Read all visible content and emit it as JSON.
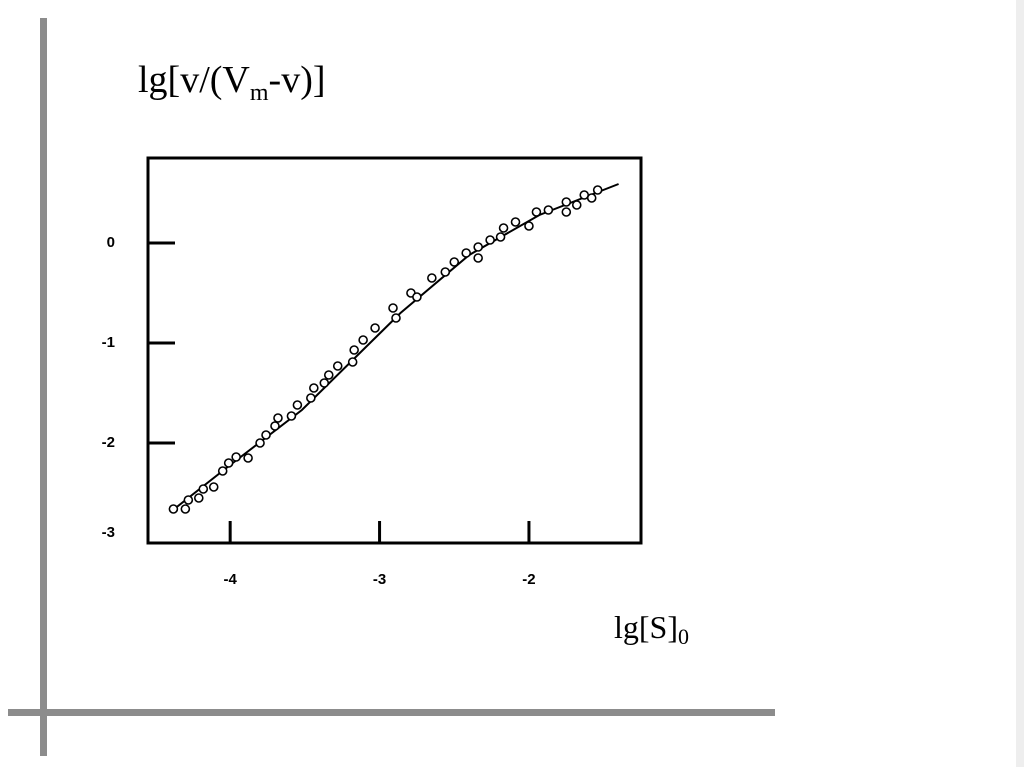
{
  "chart_data": {
    "type": "scatter",
    "ylabel": [
      "lg[v/(V",
      "m",
      "-v)]"
    ],
    "xlabel": [
      "lg[S]",
      "0"
    ],
    "x": [
      -4.38,
      -4.3,
      -4.28,
      -4.21,
      -4.18,
      -4.11,
      -4.05,
      -4.01,
      -3.96,
      -3.88,
      -3.8,
      -3.76,
      -3.7,
      -3.68,
      -3.59,
      -3.55,
      -3.46,
      -3.44,
      -3.37,
      -3.34,
      -3.28,
      -3.18,
      -3.17,
      -3.11,
      -3.03,
      -2.91,
      -2.89,
      -2.79,
      -2.75,
      -2.65,
      -2.56,
      -2.5,
      -2.42,
      -2.34,
      -2.34,
      -2.26,
      -2.19,
      -2.17,
      -2.09,
      -2.0,
      -1.95,
      -1.87,
      -1.75,
      -1.75,
      -1.68,
      -1.63,
      -1.58,
      -1.54
    ],
    "values": [
      -2.66,
      -2.66,
      -2.57,
      -2.55,
      -2.46,
      -2.44,
      -2.28,
      -2.2,
      -2.14,
      -2.15,
      -2.0,
      -1.92,
      -1.83,
      -1.75,
      -1.73,
      -1.62,
      -1.55,
      -1.45,
      -1.4,
      -1.32,
      -1.23,
      -1.19,
      -1.07,
      -0.97,
      -0.85,
      -0.65,
      -0.75,
      -0.5,
      -0.54,
      -0.35,
      -0.29,
      -0.19,
      -0.1,
      -0.04,
      -0.15,
      0.03,
      0.06,
      0.15,
      0.21,
      0.17,
      0.31,
      0.33,
      0.41,
      0.31,
      0.38,
      0.48,
      0.45,
      0.53
    ],
    "fit": {
      "x": [
        -4.4,
        -4.0,
        -3.52,
        -2.86,
        -2.4,
        -1.93,
        -1.4
      ],
      "values": [
        -2.69,
        -2.22,
        -1.67,
        -0.7,
        -0.12,
        0.28,
        0.59
      ]
    },
    "color": "#000000",
    "xlim": [
      -4.55,
      -1.25
    ],
    "xticks": [
      -4,
      -3,
      -2
    ],
    "ylim": [
      -3,
      0.85
    ],
    "yticks": [
      0,
      -1,
      -2,
      -3
    ]
  }
}
